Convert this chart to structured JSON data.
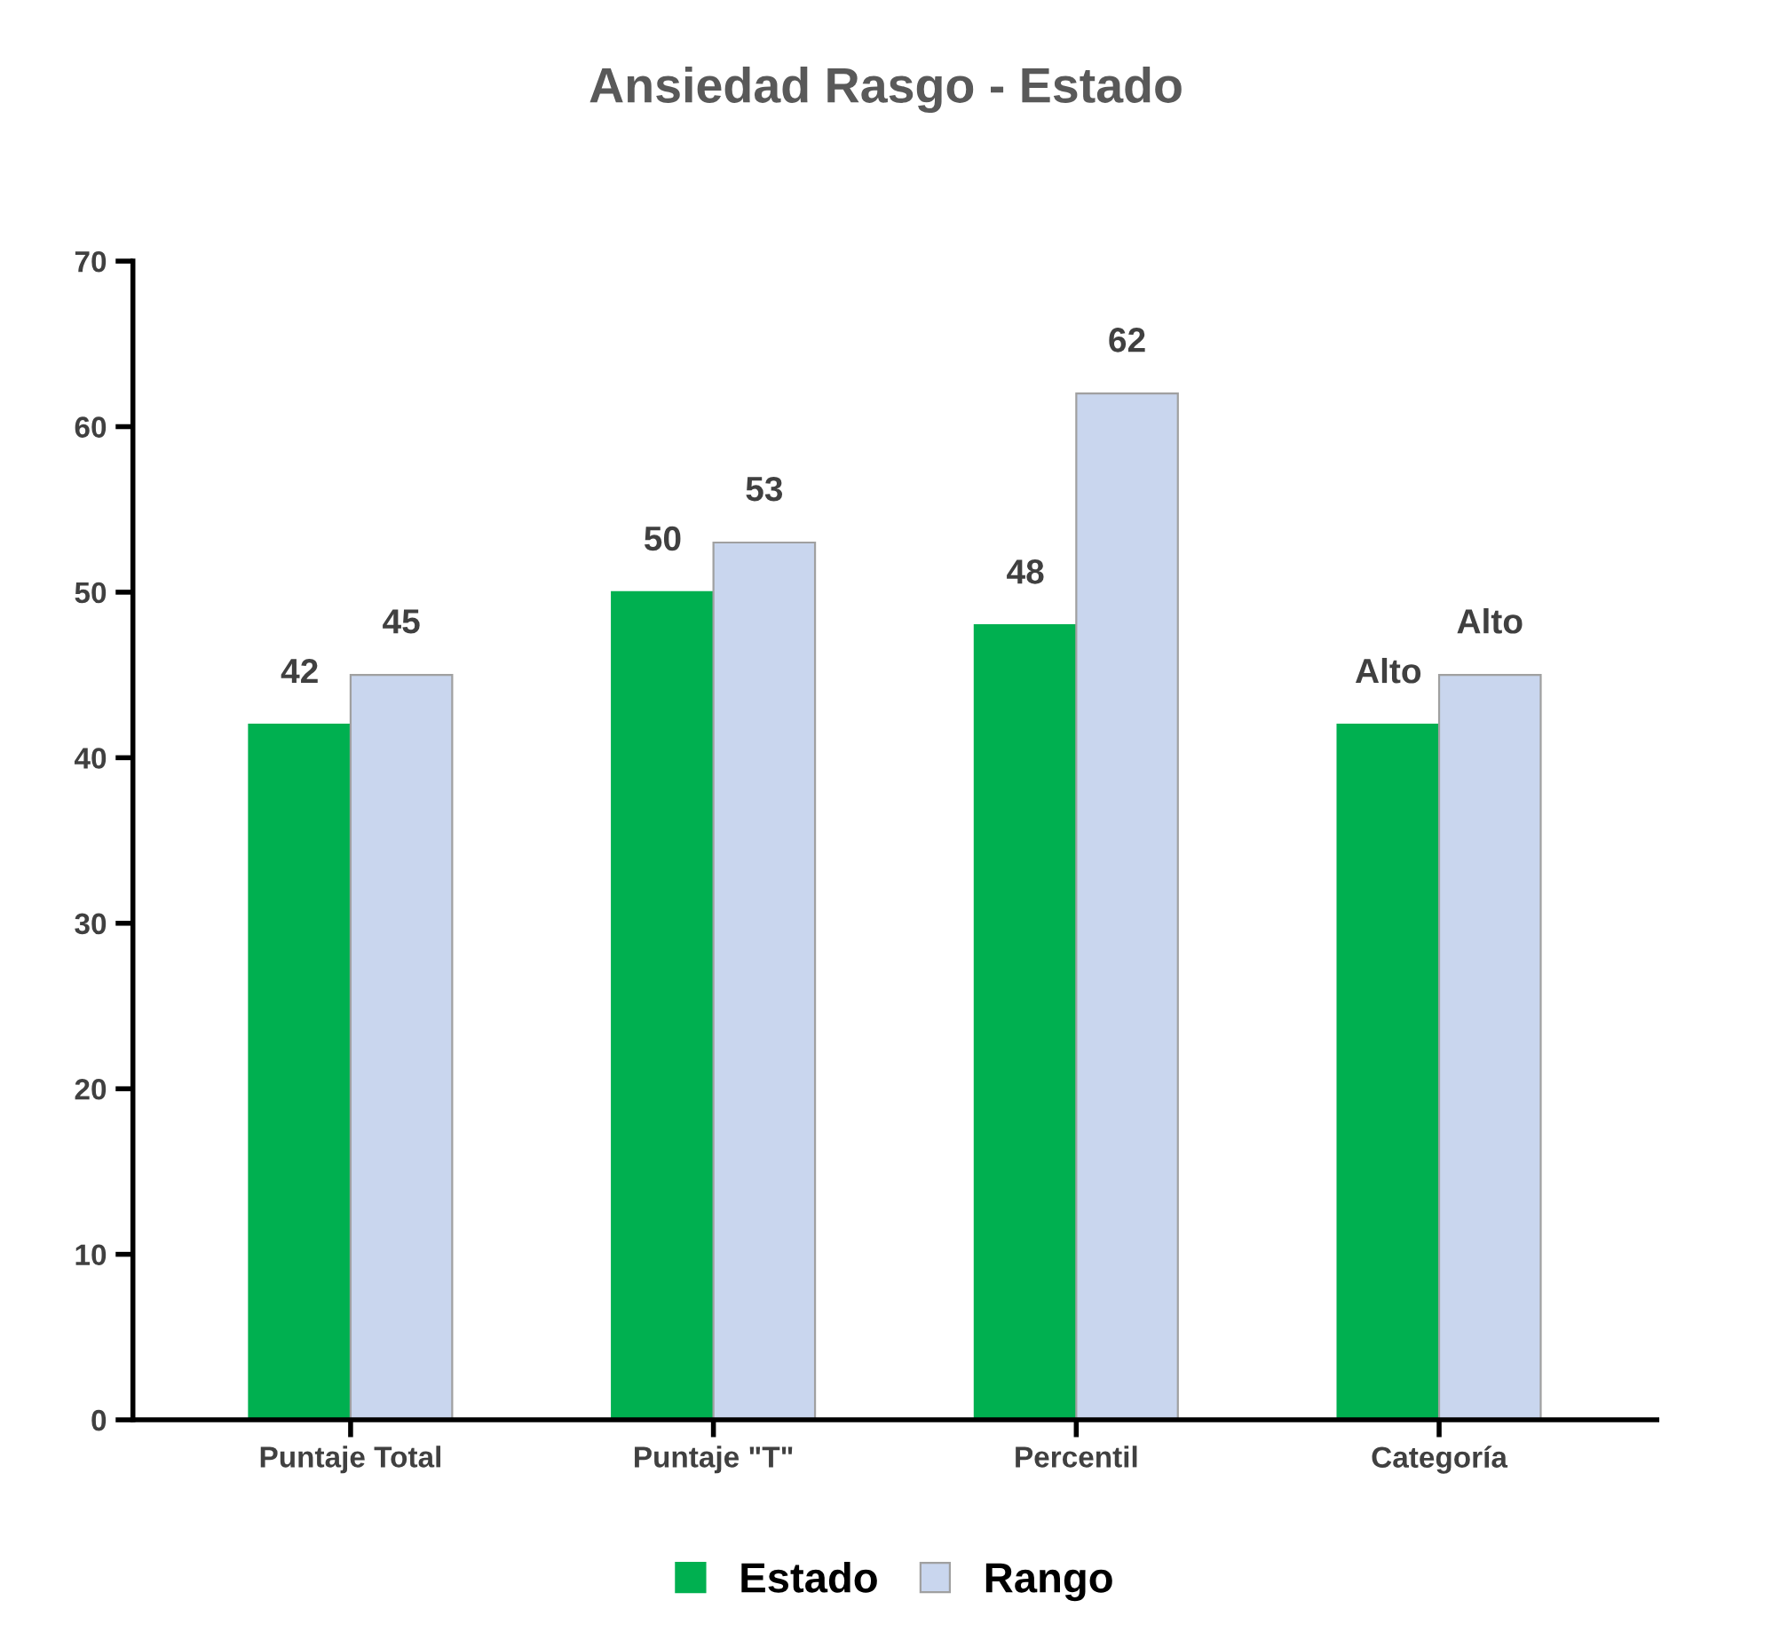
{
  "chart_data": {
    "type": "bar",
    "title": "Ansiedad Rasgo - Estado",
    "categories": [
      "Puntaje Total",
      "Puntaje \"T\"",
      "Percentil",
      "Categoría"
    ],
    "series": [
      {
        "name": "Estado",
        "color": "#00b050",
        "values": [
          42,
          50,
          48,
          42
        ],
        "value_labels": [
          "42",
          "50",
          "48",
          "Alto"
        ]
      },
      {
        "name": "Rango",
        "color": "#c9d6ee",
        "values": [
          45,
          53,
          62,
          45
        ],
        "value_labels": [
          "45",
          "53",
          "62",
          "Alto"
        ]
      }
    ],
    "ylim": [
      0,
      70
    ],
    "yticks": [
      0,
      10,
      20,
      30,
      40,
      50,
      60,
      70
    ],
    "grid": false,
    "legend": "bottom"
  }
}
